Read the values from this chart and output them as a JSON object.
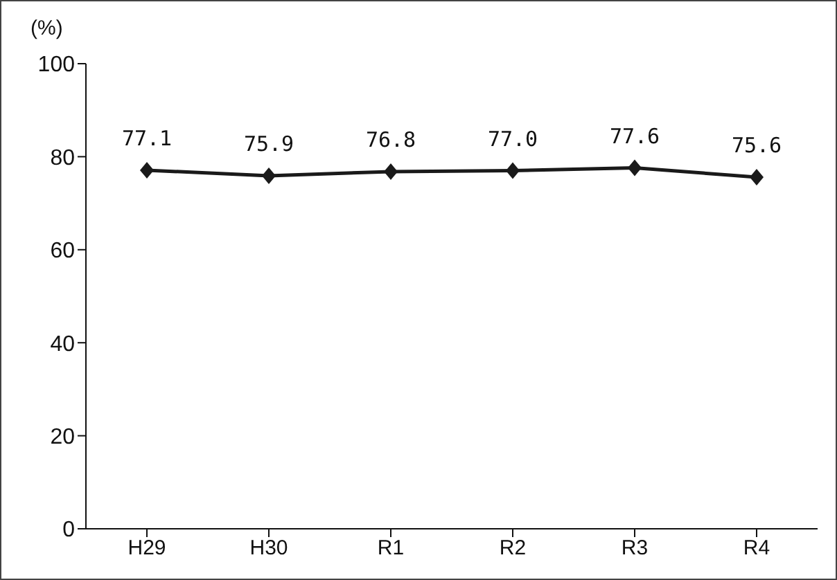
{
  "chart_data": {
    "type": "line",
    "ylabel": "(%)",
    "categories": [
      "H29",
      "H30",
      "R1",
      "R2",
      "R3",
      "R4"
    ],
    "series": [
      {
        "color": "#1a1a1a",
        "values": [
          77.1,
          75.9,
          76.8,
          77.0,
          77.6,
          75.6
        ],
        "value_labels": [
          "77.1",
          "75.9",
          "76.8",
          "77.0",
          "77.6",
          "75.6"
        ]
      }
    ],
    "ylim": [
      0,
      100
    ],
    "yticks": [
      0,
      20,
      40,
      60,
      80,
      100
    ],
    "marker": "diamond"
  }
}
